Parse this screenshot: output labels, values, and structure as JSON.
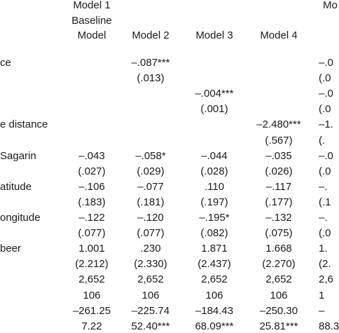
{
  "header": {
    "model1": [
      "Model 1",
      "Baseline",
      "Model"
    ],
    "models": [
      "Model 2",
      "Model 3",
      "Model 4"
    ],
    "model5": "Mo"
  },
  "rows": [
    {
      "label": "ce",
      "cells": [
        null,
        "–.087***",
        null,
        null,
        "–.0"
      ]
    },
    {
      "label": null,
      "cells": [
        null,
        "(.013)",
        null,
        null,
        "(.0"
      ]
    },
    {
      "label": null,
      "cells": [
        null,
        null,
        "–.004***",
        null,
        "–.0"
      ]
    },
    {
      "label": null,
      "cells": [
        null,
        null,
        "(.001)",
        null,
        "(.0"
      ]
    },
    {
      "label": "e distance",
      "cells": [
        null,
        null,
        null,
        "–2.480***",
        "–1."
      ]
    },
    {
      "label": null,
      "cells": [
        null,
        null,
        null,
        "(.567)",
        "(."
      ]
    },
    {
      "label": "Sagarin",
      "cells": [
        "–.043",
        "–.058*",
        "–.044",
        "–.035",
        "–.0"
      ]
    },
    {
      "label": null,
      "cells": [
        "(.027)",
        "(.029)",
        "(.028)",
        "(.026)",
        "(.0"
      ]
    },
    {
      "label": "atitude",
      "cells": [
        "–.106",
        "–.077",
        ".110",
        "–.117",
        "–."
      ]
    },
    {
      "label": null,
      "cells": [
        "(.183)",
        "(.181)",
        "(.197)",
        "(.177)",
        "(.1"
      ]
    },
    {
      "label": "ongitude",
      "cells": [
        "–.122",
        "–.120",
        "–.195*",
        "–.132",
        "–."
      ]
    },
    {
      "label": null,
      "cells": [
        "(.077)",
        "(.077)",
        "(.082)",
        "(.075)",
        "(.0"
      ]
    },
    {
      "label": "beer",
      "cells": [
        "1.001",
        ".230",
        "1.871",
        "1.668",
        "1."
      ]
    },
    {
      "label": null,
      "cells": [
        "(2.212)",
        "(2.330)",
        "(2.437)",
        "(2.270)",
        "(2."
      ]
    },
    {
      "label": null,
      "cells": [
        "2,652",
        "2,652",
        "2,652",
        "2,652",
        "2,6"
      ]
    },
    {
      "label": null,
      "cells": [
        "106",
        "106",
        "106",
        "106",
        "1"
      ]
    },
    {
      "label": null,
      "cells": [
        "–261.25",
        "–225.74",
        "–184.43",
        "–250.30",
        "–"
      ]
    },
    {
      "label": null,
      "cells": [
        "7.22",
        "52.40***",
        "68.09***",
        "25.81***",
        "88.3"
      ]
    }
  ]
}
